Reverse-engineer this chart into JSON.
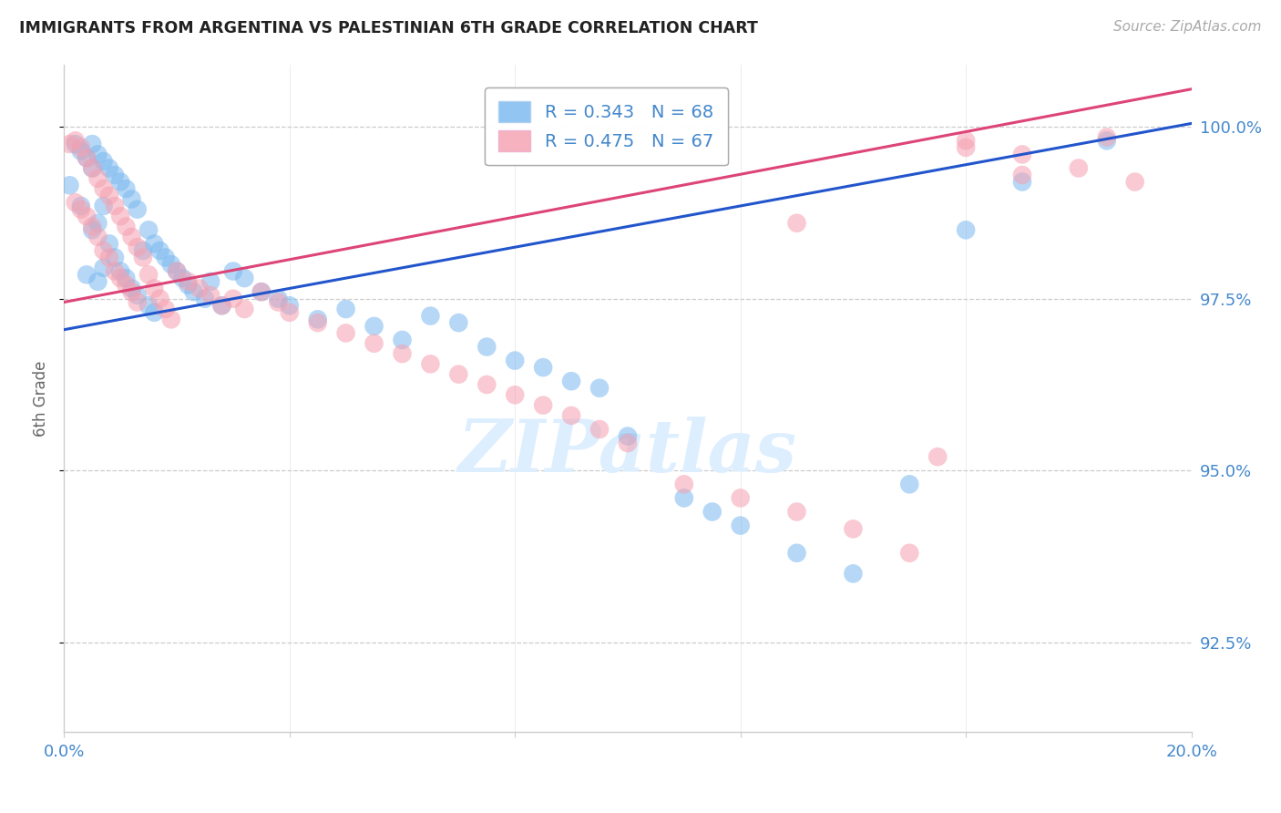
{
  "title": "IMMIGRANTS FROM ARGENTINA VS PALESTINIAN 6TH GRADE CORRELATION CHART",
  "source": "Source: ZipAtlas.com",
  "ylabel": "6th Grade",
  "yticks": [
    92.5,
    95.0,
    97.5,
    100.0
  ],
  "ytick_labels": [
    "92.5%",
    "95.0%",
    "97.5%",
    "100.0%"
  ],
  "xmin": 0.0,
  "xmax": 0.2,
  "ymin": 91.2,
  "ymax": 100.9,
  "legend_r1": "R = 0.343",
  "legend_n1": "N = 68",
  "legend_r2": "R = 0.475",
  "legend_n2": "N = 67",
  "color_blue": "#7ab8f0",
  "color_pink": "#f5a0b0",
  "color_blue_line": "#2255cc",
  "color_pink_line": "#dd4477",
  "color_axis_text": "#4488cc",
  "watermark_color": "#ddeeff",
  "trendline_arg_x0": 0.0,
  "trendline_arg_y0": 97.05,
  "trendline_arg_x1": 0.2,
  "trendline_arg_y1": 100.05,
  "trendline_pal_x0": 0.0,
  "trendline_pal_y0": 97.45,
  "trendline_pal_x1": 0.2,
  "trendline_pal_y1": 100.55,
  "argentina_x": [
    0.001,
    0.002,
    0.003,
    0.003,
    0.004,
    0.004,
    0.005,
    0.005,
    0.005,
    0.006,
    0.006,
    0.006,
    0.007,
    0.007,
    0.007,
    0.008,
    0.008,
    0.009,
    0.009,
    0.01,
    0.01,
    0.011,
    0.011,
    0.012,
    0.012,
    0.013,
    0.013,
    0.014,
    0.015,
    0.015,
    0.016,
    0.016,
    0.017,
    0.018,
    0.019,
    0.02,
    0.021,
    0.022,
    0.023,
    0.025,
    0.026,
    0.028,
    0.03,
    0.032,
    0.035,
    0.038,
    0.04,
    0.045,
    0.05,
    0.055,
    0.06,
    0.065,
    0.07,
    0.075,
    0.08,
    0.085,
    0.09,
    0.095,
    0.1,
    0.11,
    0.115,
    0.12,
    0.13,
    0.14,
    0.15,
    0.16,
    0.17,
    0.185
  ],
  "argentina_y": [
    99.15,
    99.75,
    99.65,
    98.85,
    99.55,
    97.85,
    99.75,
    99.4,
    98.5,
    99.6,
    98.6,
    97.75,
    99.5,
    98.85,
    97.95,
    99.4,
    98.3,
    99.3,
    98.1,
    99.2,
    97.9,
    99.1,
    97.8,
    98.95,
    97.65,
    98.8,
    97.55,
    98.2,
    98.5,
    97.4,
    98.3,
    97.3,
    98.2,
    98.1,
    98.0,
    97.9,
    97.8,
    97.7,
    97.6,
    97.5,
    97.75,
    97.4,
    97.9,
    97.8,
    97.6,
    97.5,
    97.4,
    97.2,
    97.35,
    97.1,
    96.9,
    97.25,
    97.15,
    96.8,
    96.6,
    96.5,
    96.3,
    96.2,
    95.5,
    94.6,
    94.4,
    94.2,
    93.8,
    93.5,
    94.8,
    98.5,
    99.2,
    99.8
  ],
  "palestinian_x": [
    0.001,
    0.002,
    0.002,
    0.003,
    0.003,
    0.004,
    0.004,
    0.005,
    0.005,
    0.006,
    0.006,
    0.007,
    0.007,
    0.008,
    0.008,
    0.009,
    0.009,
    0.01,
    0.01,
    0.011,
    0.011,
    0.012,
    0.012,
    0.013,
    0.013,
    0.014,
    0.015,
    0.016,
    0.017,
    0.018,
    0.019,
    0.02,
    0.022,
    0.024,
    0.026,
    0.028,
    0.03,
    0.032,
    0.035,
    0.038,
    0.04,
    0.045,
    0.05,
    0.055,
    0.06,
    0.065,
    0.07,
    0.075,
    0.08,
    0.085,
    0.09,
    0.095,
    0.1,
    0.11,
    0.12,
    0.13,
    0.14,
    0.15,
    0.155,
    0.16,
    0.17,
    0.18,
    0.19,
    0.13,
    0.16,
    0.17,
    0.185
  ],
  "palestinian_y": [
    99.75,
    99.8,
    98.9,
    99.7,
    98.8,
    99.55,
    98.7,
    99.4,
    98.55,
    99.25,
    98.4,
    99.1,
    98.2,
    99.0,
    98.1,
    98.85,
    97.9,
    98.7,
    97.8,
    98.55,
    97.7,
    98.4,
    97.6,
    98.25,
    97.45,
    98.1,
    97.85,
    97.65,
    97.5,
    97.35,
    97.2,
    97.9,
    97.75,
    97.65,
    97.55,
    97.4,
    97.5,
    97.35,
    97.6,
    97.45,
    97.3,
    97.15,
    97.0,
    96.85,
    96.7,
    96.55,
    96.4,
    96.25,
    96.1,
    95.95,
    95.8,
    95.6,
    95.4,
    94.8,
    94.6,
    94.4,
    94.15,
    93.8,
    95.2,
    99.8,
    99.6,
    99.4,
    99.2,
    98.6,
    99.7,
    99.3,
    99.85
  ]
}
